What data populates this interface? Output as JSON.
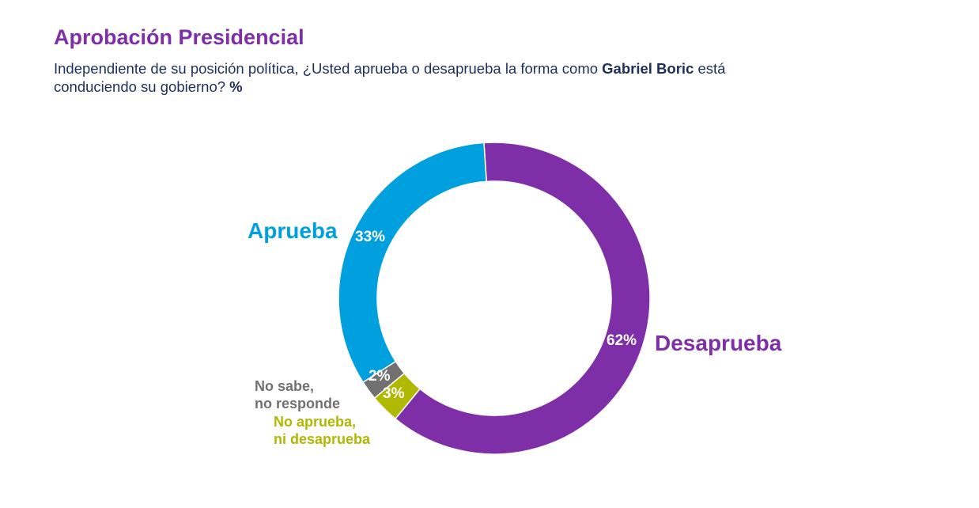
{
  "title": "Aprobación Presidencial",
  "subtitle": {
    "part1": "Independiente de su posición política, ¿Usted aprueba o desaprueba la forma como ",
    "bold_name": "Gabriel Boric",
    "part2": " está",
    "line2": "conduciendo su gobierno? ",
    "unit": "%"
  },
  "chart_data": {
    "type": "pie",
    "variant": "donut",
    "title": "Aprobación Presidencial",
    "unit": "%",
    "slices": [
      {
        "label": "Desaprueba",
        "value": 62,
        "value_label": "62%",
        "color": "#7e2fa8"
      },
      {
        "label": "No aprueba, ni desaprueba",
        "label_lines": [
          "No aprueba,",
          "ni desaprueba"
        ],
        "value": 3,
        "value_label": "3%",
        "color": "#b0b800"
      },
      {
        "label": "No sabe, no responde",
        "label_lines": [
          "No sabe,",
          "no responde"
        ],
        "value": 2,
        "value_label": "2%",
        "color": "#717171"
      },
      {
        "label": "Aprueba",
        "value": 33,
        "value_label": "33%",
        "color": "#00a0df"
      }
    ],
    "direction": "clockwise",
    "legend": "none"
  }
}
